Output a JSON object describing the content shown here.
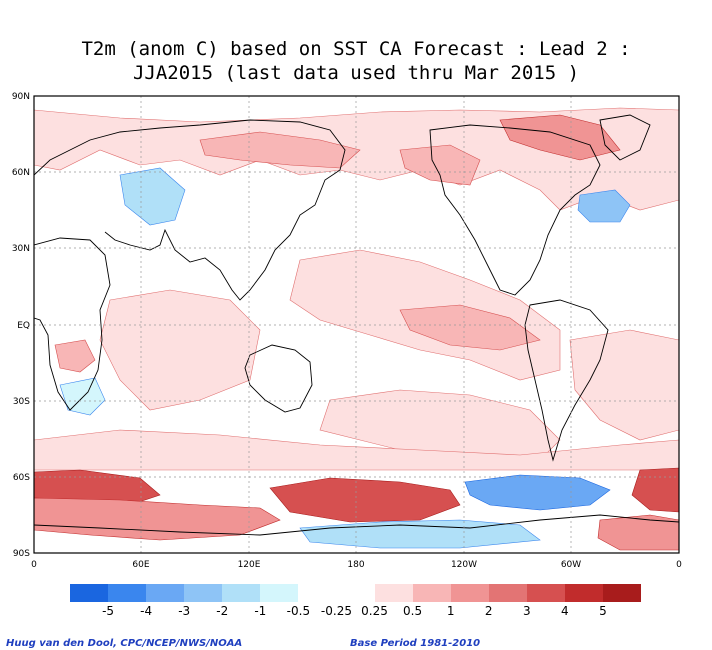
{
  "title": {
    "line1": "T2m (anom C) based on SST CA Forecast : Lead 2 :",
    "line2": "JJA2015 (last data used thru Mar 2015 )"
  },
  "map": {
    "lat_labels": [
      "90N",
      "60N",
      "30N",
      "EQ",
      "30S",
      "60S",
      "90S"
    ],
    "lon_labels": [
      "0",
      "60E",
      "120E",
      "180",
      "120W",
      "60W",
      "0"
    ]
  },
  "legend": {
    "labels": [
      "-5",
      "-4",
      "-3",
      "-2",
      "-1",
      "-0.5",
      "-0.25",
      "0.25",
      "0.5",
      "1",
      "2",
      "3",
      "4",
      "5"
    ],
    "colors": [
      "#1a66e0",
      "#3a86ee",
      "#6aa8f4",
      "#8ec4f6",
      "#b0e0f8",
      "#d4f6fc",
      "#ffffff",
      "#ffffff",
      "#fde0e0",
      "#f8b6b6",
      "#f09494",
      "#e37474",
      "#d65050",
      "#c12c2c",
      "#a81c1c"
    ]
  },
  "credits": {
    "left": "Huug van den Dool, CPC/NCEP/NWS/NOAA",
    "right": "Base Period 1981-2010"
  }
}
